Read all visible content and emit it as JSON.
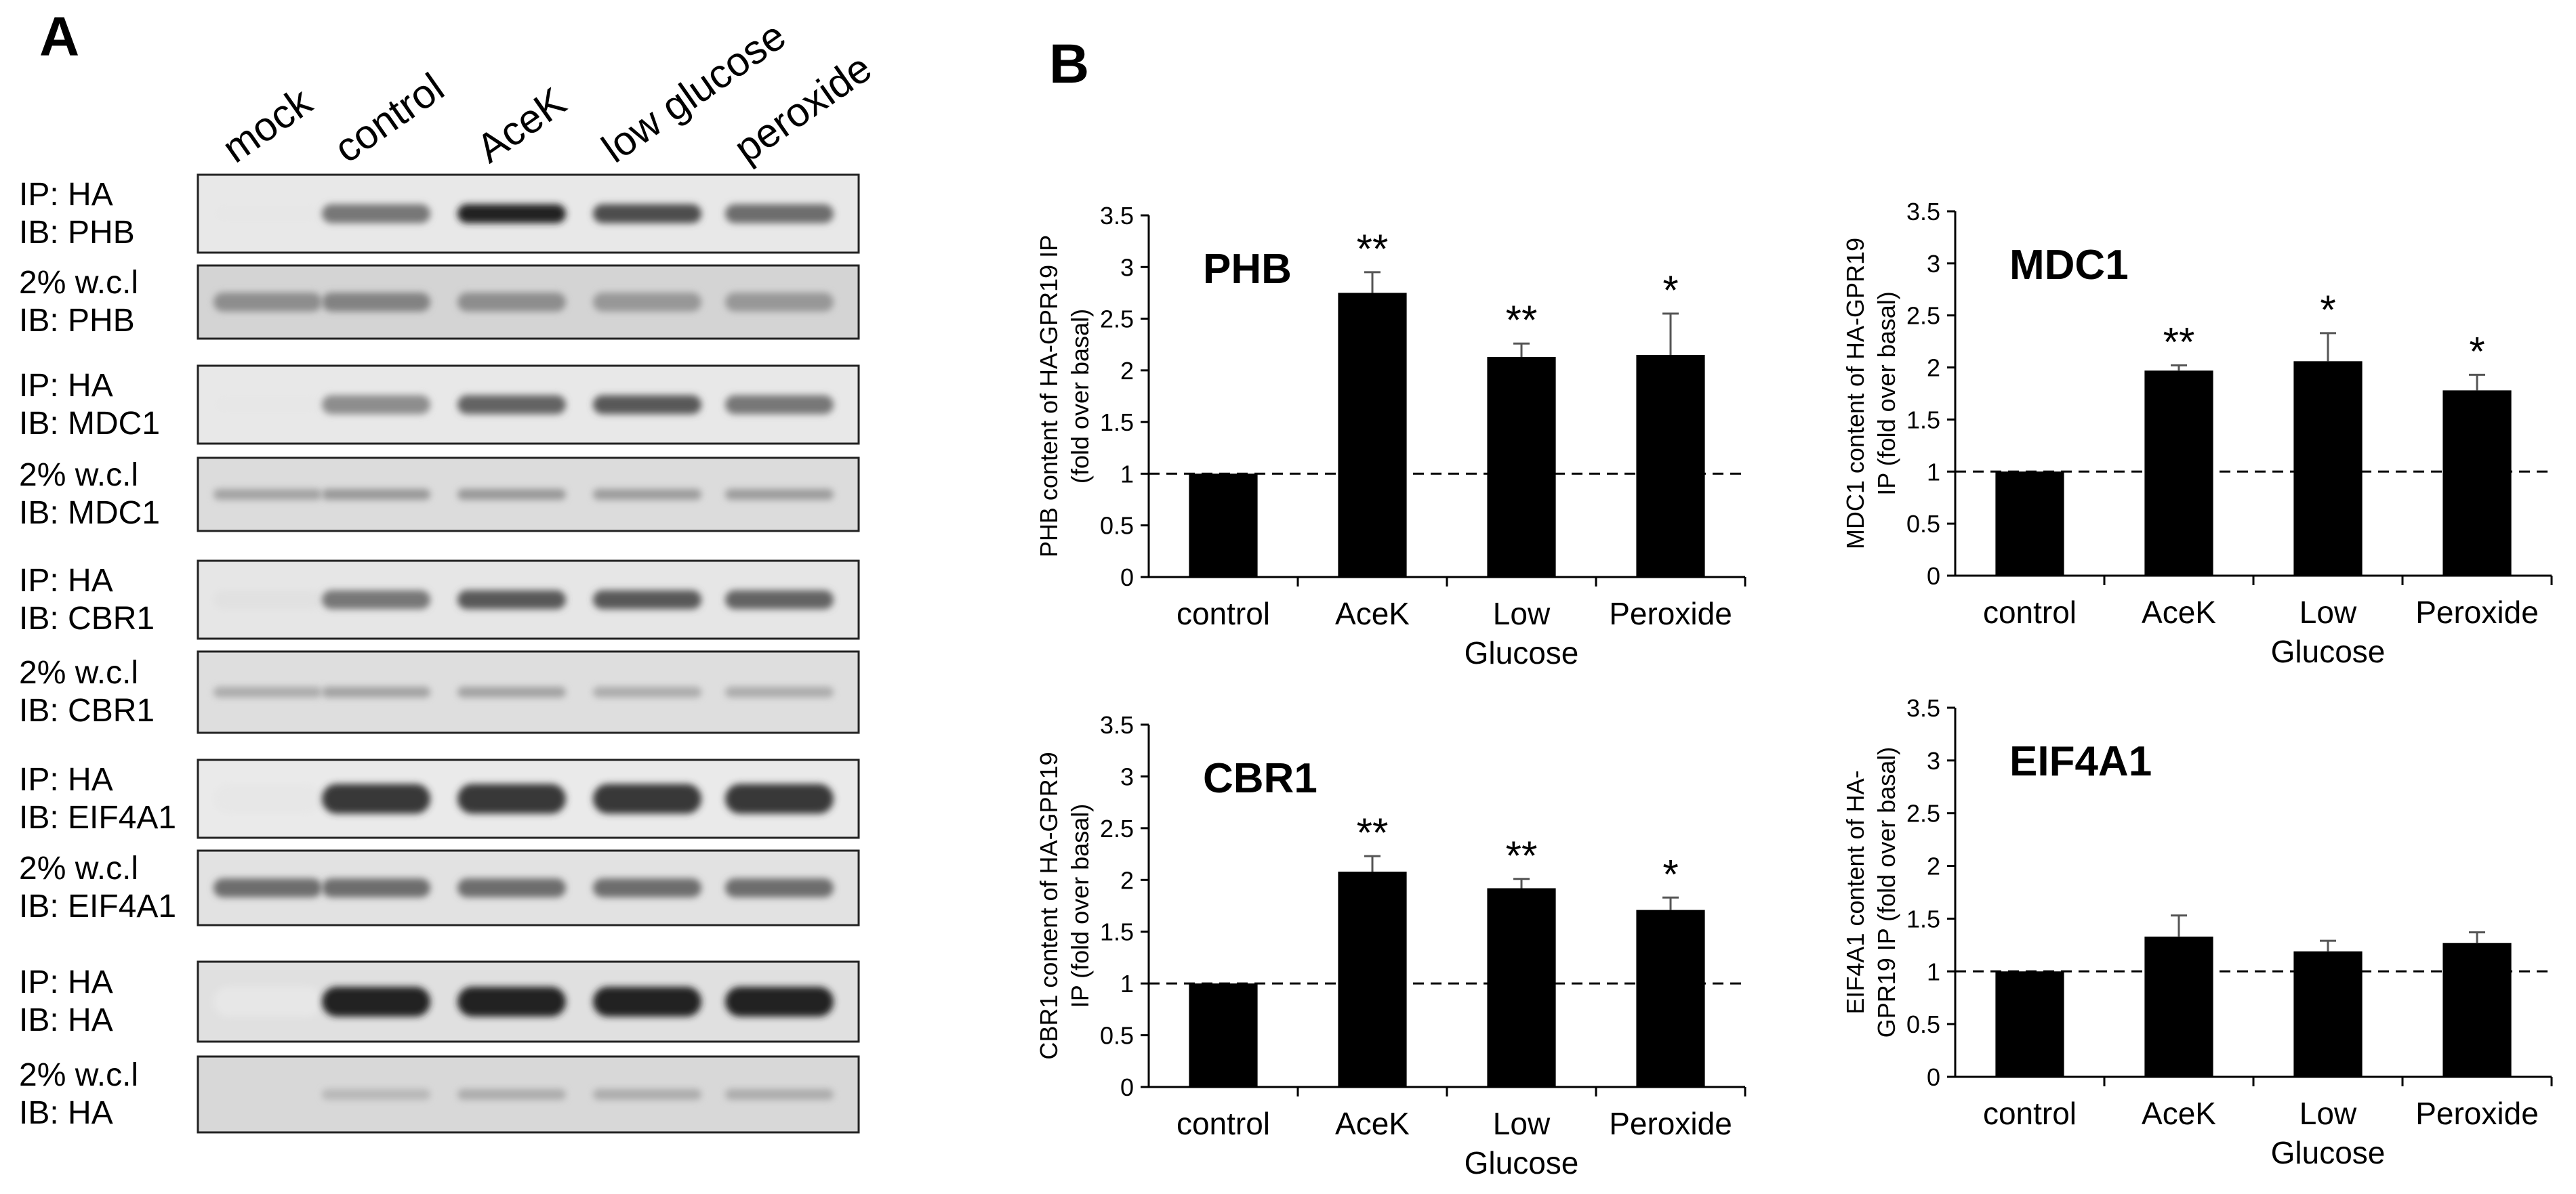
{
  "panelA": {
    "letter": "A",
    "lanes": [
      "mock",
      "control",
      "AceK",
      "low glucose",
      "peroxide"
    ],
    "blots": [
      {
        "id": "ip-phb",
        "line1": "IP: HA",
        "line2": "IB: PHB",
        "bg": "#e8e8e8",
        "bands": [
          0.02,
          0.55,
          0.95,
          0.75,
          0.6
        ],
        "style": "band"
      },
      {
        "id": "wcl-phb",
        "line1": "2% w.c.l",
        "line2": "IB: PHB",
        "bg": "#d4d4d4",
        "bands": [
          0.45,
          0.5,
          0.45,
          0.4,
          0.4
        ],
        "style": "band"
      },
      {
        "id": "ip-mdc1",
        "line1": "IP: HA",
        "line2": "IB: MDC1",
        "bg": "#e8e8e8",
        "bands": [
          0.02,
          0.45,
          0.65,
          0.7,
          0.55
        ],
        "style": "band"
      },
      {
        "id": "wcl-mdc1",
        "line1": "2% w.c.l",
        "line2": "IB: MDC1",
        "bg": "#dcdcdc",
        "bands": [
          0.35,
          0.4,
          0.4,
          0.38,
          0.38
        ],
        "style": "thin"
      },
      {
        "id": "ip-cbr1",
        "line1": "IP: HA",
        "line2": "IB: CBR1",
        "bg": "#e6e6e6",
        "bands": [
          0.05,
          0.55,
          0.7,
          0.7,
          0.65
        ],
        "style": "band"
      },
      {
        "id": "wcl-cbr1",
        "line1": "2% w.c.l",
        "line2": "IB: CBR1",
        "bg": "#dedede",
        "bands": [
          0.3,
          0.35,
          0.35,
          0.3,
          0.3
        ],
        "style": "thin"
      },
      {
        "id": "ip-eif4a1",
        "line1": "IP: HA",
        "line2": "IB: EIF4A1",
        "bg": "#eaeaea",
        "bands": [
          0.02,
          0.85,
          0.85,
          0.85,
          0.85
        ],
        "style": "thick"
      },
      {
        "id": "wcl-eif4a1",
        "line1": "2% w.c.l",
        "line2": "IB: EIF4A1",
        "bg": "#e2e2e2",
        "bands": [
          0.6,
          0.6,
          0.6,
          0.6,
          0.6
        ],
        "style": "band"
      },
      {
        "id": "ip-ha",
        "line1": "IP: HA",
        "line2": "IB: HA",
        "bg": "#e0e0e0",
        "bands": [
          0.02,
          0.95,
          0.95,
          0.95,
          0.95
        ],
        "style": "thick"
      },
      {
        "id": "wcl-ha",
        "line1": "2% w.c.l",
        "line2": "IB: HA",
        "bg": "#d8d8d8",
        "bands": [
          0.0,
          0.25,
          0.3,
          0.3,
          0.3
        ],
        "style": "thin"
      }
    ]
  },
  "panelB": {
    "letter": "B"
  },
  "chart_data": [
    {
      "type": "bar",
      "title": "PHB",
      "ylabel": "PHB content of HA-GPR19 IP (fold over basal)",
      "categories": [
        "control",
        "AceK",
        "Low Glucose",
        "Peroxide"
      ],
      "values": [
        1.0,
        2.75,
        2.13,
        2.15
      ],
      "errors": [
        0.0,
        0.2,
        0.13,
        0.4
      ],
      "significance": [
        "",
        "**",
        "**",
        "*"
      ],
      "ylim": [
        0,
        3.5
      ],
      "yticks": [
        "0",
        "0.5",
        "1",
        "1.5",
        "2",
        "2.5",
        "3",
        "3.5"
      ],
      "reference_line": 1
    },
    {
      "type": "bar",
      "title": "MDC1",
      "ylabel": "MDC1 content of HA-GPR19 IP (fold over basal)",
      "categories": [
        "control",
        "AceK",
        "Low Glucose",
        "Peroxide"
      ],
      "values": [
        1.0,
        1.97,
        2.06,
        1.78
      ],
      "errors": [
        0.0,
        0.05,
        0.27,
        0.15
      ],
      "significance": [
        "",
        "**",
        "*",
        "*"
      ],
      "ylim": [
        0,
        3.5
      ],
      "yticks": [
        "0",
        "0.5",
        "1",
        "1.5",
        "2",
        "2.5",
        "3",
        "3.5"
      ],
      "reference_line": 1
    },
    {
      "type": "bar",
      "title": "CBR1",
      "ylabel": "CBR1 content of HA-GPR19 IP (fold over basal)",
      "categories": [
        "control",
        "AceK",
        "Low Glucose",
        "Peroxide"
      ],
      "values": [
        1.0,
        2.08,
        1.92,
        1.71
      ],
      "errors": [
        0.0,
        0.15,
        0.09,
        0.12
      ],
      "significance": [
        "",
        "**",
        "**",
        "*"
      ],
      "ylim": [
        0,
        3.5
      ],
      "yticks": [
        "0",
        "0.5",
        "1",
        "1.5",
        "2",
        "2.5",
        "3",
        "3.5"
      ],
      "reference_line": 1
    },
    {
      "type": "bar",
      "title": "EIF4A1",
      "ylabel": "EIF4A1 content of HA-GPR19 IP (fold over basal)",
      "categories": [
        "control",
        "AceK",
        "Low Glucose",
        "Peroxide"
      ],
      "values": [
        1.0,
        1.33,
        1.19,
        1.27
      ],
      "errors": [
        0.0,
        0.2,
        0.1,
        0.1
      ],
      "significance": [
        "",
        "",
        "",
        ""
      ],
      "ylim": [
        0,
        3.5
      ],
      "yticks": [
        "0",
        "0.5",
        "1",
        "1.5",
        "2",
        "2.5",
        "3",
        "3.5"
      ],
      "reference_line": 1
    }
  ]
}
